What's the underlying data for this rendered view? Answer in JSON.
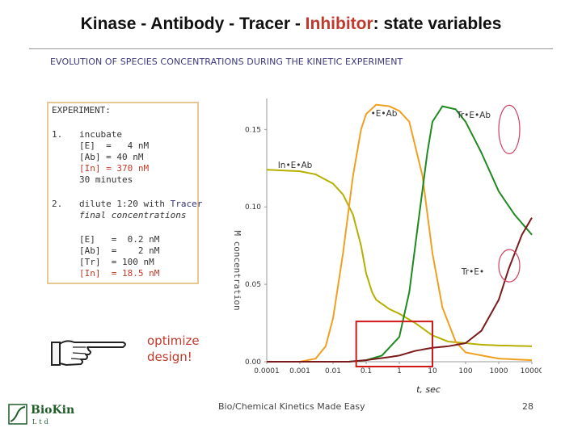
{
  "title": {
    "pre": "Kinase - Antibody - Tracer - ",
    "highlight": "Inhibitor",
    "post": ": state variables"
  },
  "subtitle": "EVOLUTION OF SPECIES CONCENTRATIONS DURING THE KINETIC EXPERIMENT",
  "experiment": {
    "heading": "EXPERIMENT:",
    "step1_num": "1.",
    "step1_action": "incubate",
    "step1_e": "[E]  =   4 nM",
    "step1_ab": "[Ab] = 40 nM",
    "step1_in": "[In] = 370 nM",
    "step1_time": "30 minutes",
    "step2_num": "2.",
    "step2_action_pre": "dilute 1:20 with ",
    "step2_action_tracer": "Tracer",
    "step2_note": "final concentrations",
    "final_e": "[E]   =  0.2 nM",
    "final_ab": "[Ab]  =    2 nM",
    "final_tr": "[Tr]  = 100 nM",
    "final_in_label": "[In]",
    "final_in_value": "= 18.5 nM"
  },
  "callout": {
    "line1": "optimize",
    "line2": "design!"
  },
  "footer": "Bio/Chemical Kinetics Made Easy",
  "page_number": "28",
  "logo": {
    "name": "BioKin",
    "suffix": "Ltd"
  },
  "colors": {
    "accent": "#c0392b",
    "ine_ab": "#b5b000",
    "e_ab": "#f0a020",
    "tr_e_ab": "#1f8a1f",
    "tr_e": "#7a1a1a",
    "highlight_box": "#d01818"
  },
  "chart_data": {
    "type": "line",
    "x_scale": "log",
    "xlim": [
      0.0001,
      10000
    ],
    "ylim": [
      0,
      0.17
    ],
    "xlabel": "t, sec",
    "ylabel": "M concentration",
    "x_ticks": [
      0.0001,
      0.001,
      0.01,
      0.1,
      1,
      10,
      100,
      1000,
      10000
    ],
    "x_tick_labels": [
      "0.0001",
      "0.001",
      "0.01",
      "0.1",
      "1",
      "10",
      "100",
      "1000",
      "10000"
    ],
    "y_ticks": [
      0,
      0.05,
      0.1,
      0.15
    ],
    "y_tick_labels": [
      "0.00",
      "0.05",
      "0.10",
      "0.15"
    ],
    "series": [
      {
        "name": "In•E•Ab",
        "color": "#b5b000",
        "points": [
          [
            0.0001,
            0.124
          ],
          [
            0.001,
            0.123
          ],
          [
            0.003,
            0.121
          ],
          [
            0.01,
            0.115
          ],
          [
            0.02,
            0.108
          ],
          [
            0.04,
            0.095
          ],
          [
            0.07,
            0.075
          ],
          [
            0.1,
            0.057
          ],
          [
            0.15,
            0.045
          ],
          [
            0.2,
            0.04
          ],
          [
            0.5,
            0.034
          ],
          [
            1,
            0.031
          ],
          [
            3,
            0.025
          ],
          [
            10,
            0.017
          ],
          [
            30,
            0.013
          ],
          [
            100,
            0.012
          ],
          [
            300,
            0.011
          ],
          [
            1000,
            0.0105
          ],
          [
            10000,
            0.01
          ]
        ]
      },
      {
        "name": "•E•Ab",
        "color": "#f0a020",
        "points": [
          [
            0.0001,
            0.0
          ],
          [
            0.001,
            0.0
          ],
          [
            0.003,
            0.002
          ],
          [
            0.006,
            0.01
          ],
          [
            0.01,
            0.028
          ],
          [
            0.02,
            0.07
          ],
          [
            0.04,
            0.12
          ],
          [
            0.07,
            0.15
          ],
          [
            0.1,
            0.16
          ],
          [
            0.2,
            0.166
          ],
          [
            0.5,
            0.165
          ],
          [
            1,
            0.162
          ],
          [
            2,
            0.155
          ],
          [
            5,
            0.12
          ],
          [
            10,
            0.07
          ],
          [
            20,
            0.035
          ],
          [
            50,
            0.013
          ],
          [
            100,
            0.006
          ],
          [
            1000,
            0.002
          ],
          [
            10000,
            0.001
          ]
        ]
      },
      {
        "name": "Tr•E•Ab",
        "color": "#1f8a1f",
        "points": [
          [
            0.0001,
            0.0
          ],
          [
            0.03,
            0.0
          ],
          [
            0.1,
            0.001
          ],
          [
            0.3,
            0.004
          ],
          [
            1,
            0.016
          ],
          [
            2,
            0.045
          ],
          [
            4,
            0.095
          ],
          [
            7,
            0.135
          ],
          [
            10,
            0.155
          ],
          [
            20,
            0.165
          ],
          [
            50,
            0.163
          ],
          [
            100,
            0.155
          ],
          [
            300,
            0.135
          ],
          [
            1000,
            0.11
          ],
          [
            3000,
            0.095
          ],
          [
            10000,
            0.082
          ]
        ]
      },
      {
        "name": "Tr•E•",
        "color": "#7a1a1a",
        "points": [
          [
            0.0001,
            0.0
          ],
          [
            0.03,
            0.0
          ],
          [
            0.1,
            0.001
          ],
          [
            0.5,
            0.003
          ],
          [
            1,
            0.004
          ],
          [
            3,
            0.007
          ],
          [
            10,
            0.009
          ],
          [
            30,
            0.01
          ],
          [
            100,
            0.012
          ],
          [
            300,
            0.02
          ],
          [
            1000,
            0.04
          ],
          [
            2000,
            0.06
          ],
          [
            5000,
            0.082
          ],
          [
            10000,
            0.093
          ]
        ]
      }
    ]
  }
}
